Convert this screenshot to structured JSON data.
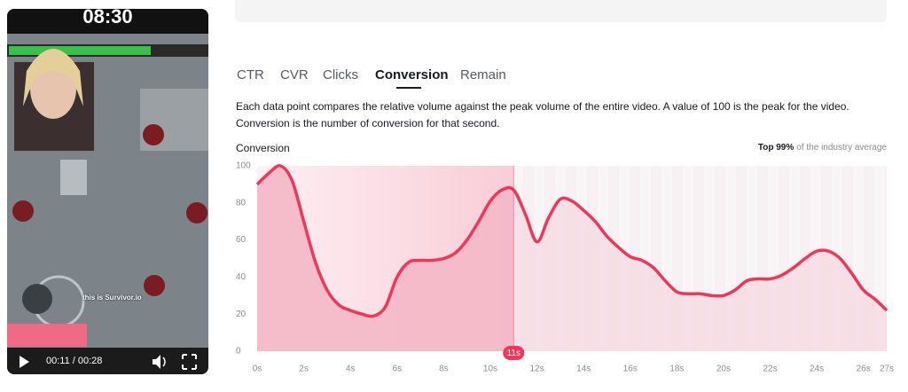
{
  "video": {
    "clock": "08:30",
    "caption": "this is Survivor.io",
    "time": "00:11 / 00:28"
  },
  "tabs": [
    "CTR",
    "CVR",
    "Clicks",
    "Conversion",
    "Remain"
  ],
  "active_tab": 3,
  "description": "Each data point compares the relative volume against the peak volume of the entire video. A value of 100 is the peak for the video. Conversion is the number of conversion for that second.",
  "rank": {
    "highlight": "Top 99%",
    "text": "of the industry average"
  },
  "chart_data": {
    "type": "area",
    "title": "Conversion",
    "color": "#f0375a",
    "x": [
      0,
      0.5,
      1,
      1.5,
      2,
      2.5,
      3,
      3.5,
      4,
      4.5,
      5,
      5.5,
      6,
      6.5,
      7,
      7.5,
      8,
      8.5,
      9,
      9.5,
      10,
      10.5,
      11,
      11.5,
      12,
      12.5,
      13,
      13.5,
      14,
      14.5,
      15,
      15.5,
      16,
      16.5,
      17,
      17.5,
      18,
      18.5,
      19,
      19.5,
      20,
      20.5,
      21,
      21.5,
      22,
      22.5,
      23,
      23.5,
      24,
      24.5,
      25,
      25.5,
      26,
      26.5,
      27
    ],
    "values": [
      90,
      96,
      100,
      92,
      70,
      48,
      33,
      25,
      22,
      20,
      19,
      24,
      40,
      48,
      49,
      49,
      50,
      53,
      60,
      70,
      81,
      87,
      87,
      74,
      59,
      72,
      82,
      81,
      76,
      70,
      62,
      56,
      51,
      49,
      45,
      38,
      32,
      31,
      31,
      30,
      30,
      33,
      38,
      39,
      39,
      41,
      45,
      50,
      54,
      54,
      50,
      42,
      33,
      28,
      22
    ],
    "xlim": [
      0,
      27
    ],
    "xticks": [
      {
        "value": 0,
        "label": "0s"
      },
      {
        "value": 2,
        "label": "2s"
      },
      {
        "value": 4,
        "label": "4s"
      },
      {
        "value": 6,
        "label": "6s"
      },
      {
        "value": 8,
        "label": "8s"
      },
      {
        "value": 10,
        "label": "10s"
      },
      {
        "value": 12,
        "label": "12s"
      },
      {
        "value": 14,
        "label": "14s"
      },
      {
        "value": 16,
        "label": "16s"
      },
      {
        "value": 18,
        "label": "18s"
      },
      {
        "value": 20,
        "label": "20s"
      },
      {
        "value": 22,
        "label": "22s"
      },
      {
        "value": 24,
        "label": "24s"
      },
      {
        "value": 26,
        "label": "26s"
      },
      {
        "value": 27,
        "label": "27s"
      }
    ],
    "ylim": [
      0,
      100
    ],
    "yticks": [
      0,
      20,
      40,
      60,
      80,
      100
    ],
    "marker": {
      "x": 11,
      "label": "11s"
    }
  }
}
